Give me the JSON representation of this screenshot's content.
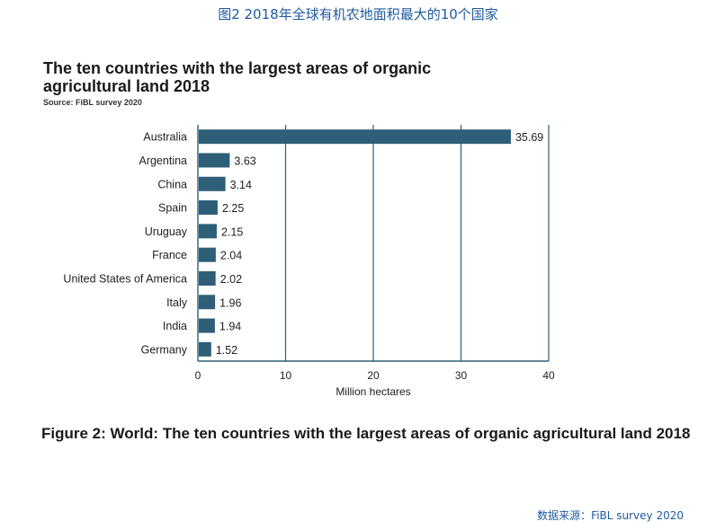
{
  "header": {
    "caption": "图2 2018年全球有机农地面积最大的10个国家"
  },
  "figure": {
    "title": "The ten countries with the largest areas of organic agricultural land 2018",
    "source": "Source: FiBL survey 2020",
    "caption": "Figure 2: World: The ten countries with the largest areas of organic agricultural land 2018"
  },
  "footer": {
    "source_label": "数据来源：",
    "source_value": "FiBL survey 2020"
  },
  "colors": {
    "bar": "#2e5e78",
    "axis": "#2e5e78",
    "gridline": "#2e5e78"
  },
  "chart_data": {
    "type": "bar",
    "orientation": "horizontal",
    "title": "The ten countries with the largest areas of organic agricultural land 2018",
    "xlabel": "Million hectares",
    "ylabel": "",
    "xlim": [
      0,
      40
    ],
    "xticks": [
      0,
      10,
      20,
      30,
      40
    ],
    "grid": true,
    "categories": [
      "Australia",
      "Argentina",
      "China",
      "Spain",
      "Uruguay",
      "France",
      "United States of America",
      "Italy",
      "India",
      "Germany"
    ],
    "values": [
      35.69,
      3.63,
      3.14,
      2.25,
      2.15,
      2.04,
      2.02,
      1.96,
      1.94,
      1.52
    ],
    "value_labels": [
      "35.69",
      "3.63",
      "3.14",
      "2.25",
      "2.15",
      "2.04",
      "2.02",
      "1.96",
      "1.94",
      "1.52"
    ]
  }
}
